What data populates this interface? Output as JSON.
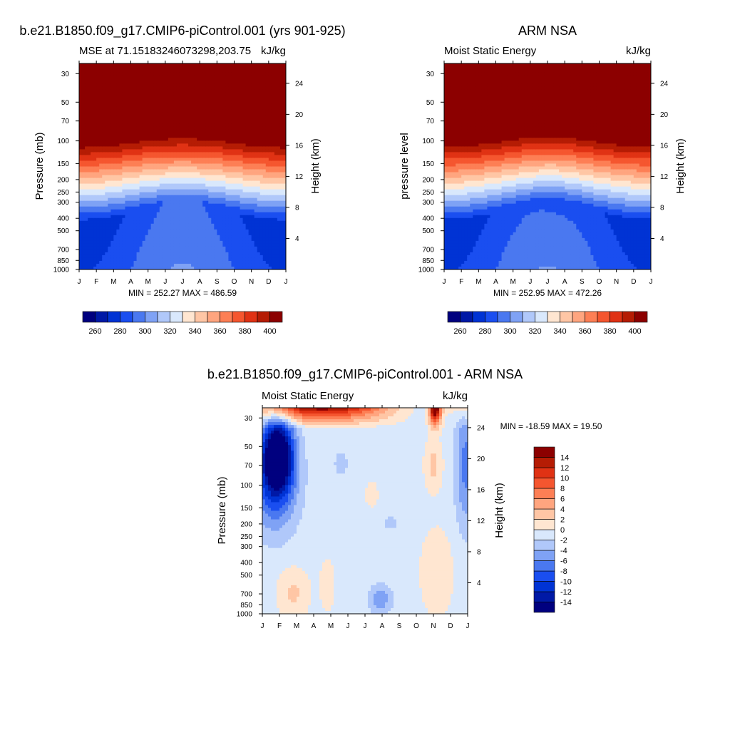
{
  "panels": [
    {
      "title": "b.e21.B1850.f09_g17.CMIP6-piControl.001 (yrs 901-925)",
      "left_label": "MSE at 71.15183246073298,203.75",
      "right_label": "kJ/kg",
      "ylabel": "Pressure (mb)",
      "ylabel_right": "Height (km)",
      "minmax": "MIN = 252.27 MAX = 486.59"
    },
    {
      "title": "ARM NSA",
      "left_label": "Moist Static Energy",
      "right_label": "kJ/kg",
      "ylabel": "pressure level",
      "ylabel_right": "Height (km)",
      "minmax": "MIN = 252.95 MAX = 472.26"
    },
    {
      "title": "b.e21.B1850.f09_g17.CMIP6-piControl.001 - ARM NSA",
      "left_label": "Moist Static Energy",
      "right_label": "kJ/kg",
      "ylabel": "Pressure (mb)",
      "ylabel_right": "Height (km)",
      "minmax": "MIN = -18.59 MAX =  19.50"
    }
  ],
  "chart_data": [
    {
      "type": "heatmap",
      "title": "b.e21.B1850.f09_g17.CMIP6-piControl.001 (yrs 901-925)",
      "subtitle": "MSE at 71.15183246073298,203.75",
      "units": "kJ/kg",
      "ylabel": "Pressure (mb)",
      "ylabel_right": "Height (km)",
      "x": [
        "J",
        "F",
        "M",
        "A",
        "M",
        "J",
        "J",
        "A",
        "S",
        "O",
        "N",
        "D",
        "J"
      ],
      "y_ticks": [
        30,
        50,
        70,
        100,
        150,
        200,
        250,
        300,
        400,
        500,
        700,
        850,
        1000
      ],
      "y_right_ticks": [
        24,
        20,
        16,
        12,
        8,
        4
      ],
      "y_scale": "log",
      "ylim": [
        1000,
        25
      ],
      "min": 252.27,
      "max": 486.59,
      "colorbar_ticks": [
        260,
        280,
        300,
        320,
        340,
        360,
        380,
        400
      ],
      "levels": [
        250,
        260,
        270,
        280,
        290,
        300,
        310,
        320,
        330,
        340,
        350,
        360,
        370,
        380,
        390,
        400
      ],
      "colors": [
        "#00007f",
        "#0019a6",
        "#0033d4",
        "#1a4ef0",
        "#4a78f0",
        "#7fa2f5",
        "#b0c8fa",
        "#d9e8fc",
        "#ffe6d1",
        "#ffc6a5",
        "#ffa57f",
        "#fd7f55",
        "#f5562f",
        "#e03214",
        "#b51c04",
        "#8c0000"
      ],
      "colorbar_position": "bottom"
    },
    {
      "type": "heatmap",
      "title": "ARM NSA",
      "subtitle": "Moist Static Energy",
      "units": "kJ/kg",
      "ylabel": "pressure level",
      "ylabel_right": "Height (km)",
      "x": [
        "J",
        "F",
        "M",
        "A",
        "M",
        "J",
        "J",
        "A",
        "S",
        "O",
        "N",
        "D",
        "J"
      ],
      "y_ticks": [
        30,
        50,
        70,
        100,
        150,
        200,
        250,
        300,
        400,
        500,
        700,
        850,
        1000
      ],
      "y_right_ticks": [
        24,
        20,
        16,
        12,
        8,
        4
      ],
      "y_scale": "log",
      "ylim": [
        1000,
        25
      ],
      "min": 252.95,
      "max": 472.26,
      "colorbar_ticks": [
        260,
        280,
        300,
        320,
        340,
        360,
        380,
        400
      ],
      "levels": [
        250,
        260,
        270,
        280,
        290,
        300,
        310,
        320,
        330,
        340,
        350,
        360,
        370,
        380,
        390,
        400
      ],
      "colors": [
        "#00007f",
        "#0019a6",
        "#0033d4",
        "#1a4ef0",
        "#4a78f0",
        "#7fa2f5",
        "#b0c8fa",
        "#d9e8fc",
        "#ffe6d1",
        "#ffc6a5",
        "#ffa57f",
        "#fd7f55",
        "#f5562f",
        "#e03214",
        "#b51c04",
        "#8c0000"
      ],
      "colorbar_position": "bottom"
    },
    {
      "type": "heatmap",
      "title": "b.e21.B1850.f09_g17.CMIP6-piControl.001 - ARM NSA",
      "subtitle": "Moist Static Energy",
      "units": "kJ/kg",
      "ylabel": "Pressure (mb)",
      "ylabel_right": "Height (km)",
      "x": [
        "J",
        "F",
        "M",
        "A",
        "M",
        "J",
        "J",
        "A",
        "S",
        "O",
        "N",
        "D",
        "J"
      ],
      "y_ticks": [
        30,
        50,
        70,
        100,
        150,
        200,
        250,
        300,
        400,
        500,
        700,
        850,
        1000
      ],
      "y_right_ticks": [
        24,
        20,
        16,
        12,
        8,
        4
      ],
      "y_scale": "log",
      "ylim": [
        1000,
        25
      ],
      "min": -18.59,
      "max": 19.5,
      "colorbar_ticks": [
        14,
        12,
        10,
        8,
        6,
        4,
        2,
        0,
        -2,
        -4,
        -6,
        -8,
        -10,
        -12,
        -14
      ],
      "levels": [
        -16,
        -14,
        -12,
        -10,
        -8,
        -6,
        -4,
        -2,
        0,
        2,
        4,
        6,
        8,
        10,
        12,
        14
      ],
      "colors": [
        "#00007f",
        "#0019a6",
        "#0033d4",
        "#1a4ef0",
        "#4a78f0",
        "#7fa2f5",
        "#b0c8fa",
        "#d9e8fc",
        "#ffe6d1",
        "#ffc6a5",
        "#ffa57f",
        "#fd7f55",
        "#f5562f",
        "#e03214",
        "#b51c04",
        "#8c0000"
      ],
      "colorbar_position": "right"
    }
  ]
}
